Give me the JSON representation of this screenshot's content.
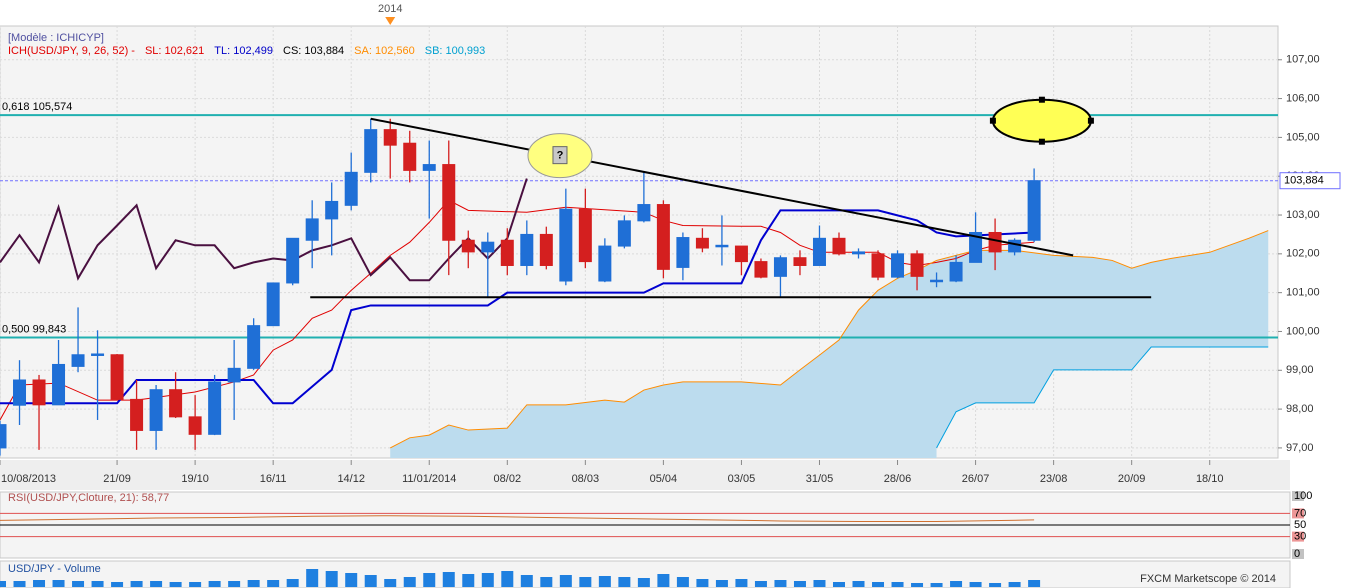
{
  "chart_data": {
    "type": "candlestick",
    "legend": {
      "model": "[Modèle : ICHICYP]",
      "items": [
        {
          "text": "ICH(USD/JPY, 9, 26, 52) -",
          "color": "#e00000"
        },
        {
          "text": "SL: 102,621",
          "color": "#e00000"
        },
        {
          "text": "TL: 102,499",
          "color": "#0000c8"
        },
        {
          "text": "CS: 103,884",
          "color": "#000000"
        },
        {
          "text": "SA: 102,560",
          "color": "#ff8c00"
        },
        {
          "text": "SB: 100,993",
          "color": "#00a0d0"
        }
      ]
    },
    "xlim": [
      0,
      65.5
    ],
    "xticks": [
      {
        "value": 0,
        "label": "10/08/2013"
      },
      {
        "value": 6,
        "label": "21/09"
      },
      {
        "value": 10,
        "label": "19/10"
      },
      {
        "value": 14,
        "label": "16/11"
      },
      {
        "value": 18,
        "label": "14/12"
      },
      {
        "value": 22,
        "label": "11/01/2014"
      },
      {
        "value": 26,
        "label": "08/02"
      },
      {
        "value": 30,
        "label": "08/03"
      },
      {
        "value": 34,
        "label": "05/04"
      },
      {
        "value": 38,
        "label": "03/05"
      },
      {
        "value": 42,
        "label": "31/05"
      },
      {
        "value": 46,
        "label": "28/06"
      },
      {
        "value": 50,
        "label": "26/07"
      },
      {
        "value": 54,
        "label": "23/08"
      },
      {
        "value": 58,
        "label": "20/09"
      },
      {
        "value": 62,
        "label": "18/10"
      }
    ],
    "ylim": [
      96.74,
      107.87
    ],
    "yticks": [
      {
        "value": 97,
        "label": "97,00"
      },
      {
        "value": 98,
        "label": "98,00"
      },
      {
        "value": 99,
        "label": "99,00"
      },
      {
        "value": 100,
        "label": "100,00"
      },
      {
        "value": 101,
        "label": "101,00"
      },
      {
        "value": 102,
        "label": "102,00"
      },
      {
        "value": 103,
        "label": "103,00"
      },
      {
        "value": 104,
        "label": "104,00"
      },
      {
        "value": 105,
        "label": "105,00"
      },
      {
        "value": 106,
        "label": "106,00"
      },
      {
        "value": 107,
        "label": "107,00"
      }
    ],
    "grid": true,
    "candles": {
      "x": [
        0,
        1,
        2,
        3,
        4,
        5,
        6,
        7,
        8,
        9,
        10,
        11,
        12,
        13,
        14,
        15,
        16,
        17,
        18,
        19,
        20,
        21,
        22,
        23,
        24,
        25,
        26,
        27,
        28,
        29,
        30,
        31,
        32,
        33,
        34,
        35,
        36,
        37,
        38,
        39,
        40,
        41,
        42,
        43,
        44,
        45,
        46,
        47,
        48,
        49,
        50,
        51,
        52,
        53
      ],
      "open": [
        97.0,
        98.1,
        98.75,
        98.11,
        99.1,
        99.4,
        99.4,
        98.25,
        97.45,
        98.5,
        97.8,
        97.35,
        98.7,
        99.05,
        100.15,
        101.25,
        102.35,
        102.9,
        103.25,
        104.1,
        105.2,
        104.85,
        104.15,
        104.3,
        102.35,
        102.05,
        102.35,
        101.7,
        102.5,
        101.3,
        103.15,
        101.3,
        102.2,
        102.85,
        103.27,
        101.65,
        102.4,
        102.2,
        102.2,
        101.8,
        101.42,
        101.9,
        101.7,
        102.4,
        102.0,
        102.0,
        101.4,
        102.0,
        101.3,
        101.3,
        101.78,
        102.55,
        102.05,
        102.35
      ],
      "high": [
        97.7,
        99.26,
        98.88,
        99.78,
        100.62,
        100.03,
        99.42,
        98.75,
        98.62,
        98.95,
        98.36,
        98.88,
        99.78,
        100.34,
        101.25,
        102.4,
        103.38,
        103.84,
        104.61,
        105.48,
        105.48,
        105.17,
        104.92,
        104.92,
        102.6,
        102.55,
        102.66,
        102.86,
        102.7,
        103.68,
        103.68,
        102.4,
        102.99,
        104.1,
        103.38,
        102.55,
        102.66,
        102.99,
        102.2,
        101.88,
        101.96,
        102.09,
        102.73,
        102.55,
        102.14,
        102.09,
        102.09,
        102.09,
        101.52,
        101.96,
        103.07,
        102.91,
        102.4,
        104.2
      ],
      "low": [
        96.8,
        97.59,
        96.95,
        98.11,
        98.95,
        97.72,
        98.23,
        96.95,
        96.95,
        97.77,
        96.95,
        97.33,
        97.72,
        99.01,
        100.16,
        101.19,
        101.63,
        101.96,
        103.12,
        103.84,
        103.94,
        103.84,
        102.91,
        101.45,
        101.63,
        100.86,
        101.45,
        101.45,
        101.6,
        101.19,
        101.63,
        101.27,
        102.14,
        102.81,
        101.37,
        101.32,
        102.04,
        101.7,
        101.45,
        101.37,
        100.88,
        101.45,
        101.7,
        101.96,
        101.88,
        101.32,
        101.37,
        101.06,
        101.14,
        101.27,
        101.78,
        101.58,
        101.96,
        102.3
      ],
      "close": [
        97.6,
        98.75,
        98.11,
        99.15,
        99.4,
        99.42,
        98.25,
        97.45,
        98.5,
        97.8,
        97.35,
        98.7,
        99.05,
        100.15,
        101.25,
        102.4,
        102.9,
        103.35,
        104.1,
        105.2,
        104.8,
        104.15,
        104.3,
        102.35,
        102.05,
        102.3,
        101.7,
        102.5,
        101.7,
        103.15,
        101.8,
        102.2,
        102.85,
        103.27,
        101.6,
        102.42,
        102.15,
        102.22,
        101.8,
        101.4,
        101.9,
        101.7,
        102.4,
        102.0,
        102.05,
        101.4,
        102.0,
        101.42,
        101.32,
        101.78,
        102.55,
        102.05,
        102.35,
        103.884
      ],
      "up_color": "#1f6fd6",
      "down_color": "#d41f1f"
    },
    "lines": [
      {
        "color": "#e00000",
        "width": 1,
        "x": [
          0,
          1,
          3,
          5,
          7,
          10,
          12,
          13,
          14,
          15,
          16,
          17,
          18,
          19,
          20,
          21,
          22,
          23,
          24,
          27,
          29,
          33,
          34,
          35,
          38,
          39,
          40,
          41,
          42,
          45,
          46,
          47,
          48,
          49,
          50,
          51,
          53
        ],
        "values": [
          97.72,
          98.62,
          98.67,
          98.23,
          98.23,
          98.44,
          98.7,
          98.88,
          99.52,
          99.78,
          100.34,
          100.55,
          101.06,
          101.5,
          101.96,
          102.3,
          102.81,
          103.38,
          103.12,
          103.07,
          103.2,
          103.07,
          102.86,
          102.73,
          102.71,
          102.71,
          102.55,
          102.22,
          102.04,
          102.04,
          101.78,
          101.7,
          101.78,
          101.88,
          102.09,
          102.22,
          102.3
        ]
      },
      {
        "color": "#0000d0",
        "width": 2,
        "x": [
          0,
          6,
          7,
          13,
          14,
          15,
          17,
          18,
          19,
          25,
          26,
          33,
          34,
          38,
          39,
          40,
          45,
          47,
          48,
          49,
          53
        ],
        "values": [
          98.15,
          98.15,
          98.75,
          98.75,
          98.15,
          98.15,
          99.01,
          100.55,
          100.67,
          100.67,
          101.0,
          101.0,
          101.24,
          101.24,
          102.35,
          103.12,
          103.12,
          102.86,
          102.55,
          102.45,
          102.55
        ]
      },
      {
        "color": "#4a1040",
        "width": 2,
        "x": [
          0,
          1,
          2,
          3,
          4,
          5,
          6,
          7,
          8,
          9,
          10,
          11,
          12,
          13,
          14,
          15,
          16,
          17,
          18,
          19,
          20,
          21,
          22,
          23,
          24,
          25,
          26,
          27
        ],
        "values": [
          101.78,
          102.48,
          101.78,
          103.2,
          101.37,
          102.22,
          102.73,
          103.25,
          101.63,
          102.35,
          102.22,
          102.22,
          101.63,
          101.78,
          101.88,
          101.83,
          102.09,
          102.22,
          102.4,
          101.45,
          101.91,
          101.32,
          101.32,
          101.88,
          102.4,
          101.88,
          102.4,
          103.94
        ]
      },
      {
        "color": "#ff8c00",
        "width": 1,
        "x": [
          20,
          21,
          22,
          23,
          24,
          26,
          27,
          29,
          31,
          32,
          33,
          34,
          35,
          38,
          40,
          41,
          42,
          43,
          44,
          45,
          46,
          47,
          48,
          49,
          50,
          52,
          54,
          56,
          57,
          58,
          59,
          60,
          62,
          64,
          65
        ],
        "values": [
          97.0,
          97.26,
          97.33,
          97.59,
          97.46,
          97.51,
          98.11,
          98.11,
          98.23,
          98.18,
          98.49,
          98.62,
          98.7,
          98.7,
          98.62,
          99.01,
          99.39,
          99.78,
          100.55,
          101.06,
          101.37,
          101.58,
          101.83,
          101.96,
          102.09,
          102.09,
          101.96,
          101.91,
          101.83,
          101.63,
          101.78,
          101.88,
          102.04,
          102.4,
          102.6
        ]
      },
      {
        "color": "#00a0e0",
        "width": 1,
        "x": [
          48,
          49,
          50,
          53,
          54,
          58,
          59,
          65
        ],
        "values": [
          97.0,
          97.93,
          98.16,
          98.16,
          99.01,
          99.01,
          99.6,
          99.6
        ]
      }
    ],
    "cloud": {
      "color": "#bcdcee"
    },
    "levels": [
      {
        "value": 105.574,
        "label": "0,618 105,574",
        "color": "#20b0b0"
      },
      {
        "value": 99.843,
        "label": "0,500 99,843",
        "color": "#20b0b0"
      }
    ],
    "last_price": {
      "value": 103.884,
      "label": "103,884",
      "color": "#7070ff"
    },
    "trendlines": [
      {
        "x": [
          19,
          55
        ],
        "values": [
          105.48,
          101.96
        ]
      },
      {
        "x": [
          15.9,
          59
        ],
        "values": [
          100.88,
          100.88
        ]
      }
    ],
    "ellipses": [
      {
        "x": 28.7,
        "y": 104.53,
        "text": "?"
      },
      {
        "x": 53.4,
        "y": 105.43
      }
    ],
    "period_marker": {
      "x": 20,
      "label": "2014"
    },
    "rsi": {
      "label": "RSI(USD/JPY,Cloture, 21): 58,77",
      "color": "#d07030",
      "x": [
        0,
        4,
        8,
        12,
        16,
        20,
        24,
        28,
        32,
        36,
        40,
        44,
        48,
        53
      ],
      "values": [
        58,
        60,
        62,
        63,
        65,
        66,
        65,
        63,
        61,
        59,
        57,
        56,
        56,
        58.77
      ],
      "ylim": [
        0,
        100
      ],
      "yticks": [
        100,
        70,
        50,
        30,
        0
      ],
      "tick_colors": [
        "#999999",
        "#e05050",
        "#000000",
        "#e05050",
        "#999999"
      ]
    },
    "volume": {
      "label": "USD/JPY - Volume",
      "color": "#1f80e0",
      "ylim": [
        0,
        20
      ],
      "values": [
        6,
        6,
        7,
        7,
        6,
        6,
        5,
        6,
        6,
        5,
        5,
        6,
        6,
        7,
        7,
        8,
        18,
        16,
        14,
        12,
        8,
        10,
        14,
        15,
        13,
        14,
        16,
        12,
        10,
        12,
        10,
        11,
        10,
        9,
        13,
        10,
        8,
        7,
        8,
        6,
        7,
        6,
        7,
        5,
        6,
        5,
        5,
        4,
        4,
        6,
        5,
        4,
        5,
        7
      ]
    },
    "footer": "FXCM Marketscope © 2014"
  }
}
